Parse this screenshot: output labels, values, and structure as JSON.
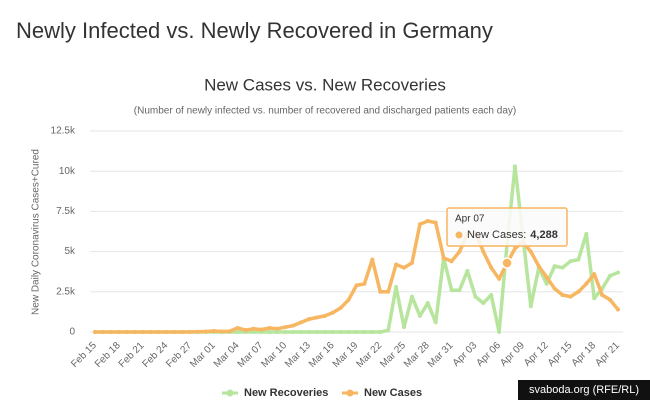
{
  "page_title": "Newly Infected vs. Newly Recovered in Germany",
  "watermark": "svaboda.org (RFE/RL)",
  "chart_data": {
    "type": "line",
    "title": "New Cases vs. New Recoveries",
    "subtitle": "(Number of newly infected vs. number of recovered and discharged patients each day)",
    "y_label": "New Daily Coronavirus Cases+Cured",
    "categories": [
      "Feb 15",
      null,
      null,
      "Feb 18",
      null,
      null,
      "Feb 21",
      null,
      null,
      "Feb 24",
      null,
      null,
      "Feb 27",
      null,
      null,
      "Mar 01",
      null,
      null,
      "Mar 04",
      null,
      null,
      "Mar 07",
      null,
      null,
      "Mar 10",
      null,
      null,
      "Mar 13",
      null,
      null,
      "Mar 16",
      null,
      null,
      "Mar 19",
      null,
      null,
      "Mar 22",
      null,
      null,
      "Mar 25",
      null,
      null,
      "Mar 28",
      null,
      null,
      "Mar 31",
      null,
      null,
      "Apr 03",
      null,
      null,
      "Apr 06",
      null,
      null,
      "Apr 09",
      null,
      null,
      "Apr 12",
      null,
      null,
      "Apr 15",
      null,
      null,
      "Apr 18",
      null,
      null,
      "Apr 21"
    ],
    "series": [
      {
        "name": "New Recoveries",
        "color": "#b8e59d",
        "values": [
          0,
          0,
          0,
          0,
          0,
          0,
          0,
          0,
          0,
          0,
          0,
          0,
          0,
          0,
          0,
          0,
          0,
          0,
          0,
          0,
          0,
          0,
          0,
          0,
          0,
          0,
          0,
          0,
          0,
          0,
          0,
          0,
          0,
          0,
          0,
          0,
          0,
          100,
          2800,
          300,
          2200,
          1000,
          1800,
          600,
          4600,
          2600,
          2600,
          3800,
          2200,
          1800,
          2300,
          0,
          5500,
          10300,
          6000,
          1600,
          4000,
          3000,
          4100,
          4000,
          4400,
          4500,
          6100,
          2100,
          2700,
          3500,
          3700
        ]
      },
      {
        "name": "New Cases",
        "color": "#f7b661",
        "values": [
          0,
          0,
          0,
          0,
          0,
          0,
          0,
          0,
          0,
          0,
          2,
          0,
          8,
          10,
          30,
          60,
          30,
          50,
          250,
          120,
          200,
          150,
          250,
          200,
          300,
          400,
          600,
          800,
          900,
          1000,
          1200,
          1500,
          2000,
          2900,
          3000,
          4500,
          2500,
          2500,
          4200,
          4000,
          4300,
          6700,
          6900,
          6800,
          4600,
          4400,
          5000,
          6100,
          6200,
          5000,
          4000,
          3300,
          4288,
          5200,
          5600,
          5000,
          4100,
          3400,
          2700,
          2300,
          2200,
          2500,
          3000,
          3600,
          2300,
          2000,
          1400
        ]
      }
    ],
    "ylim": [
      0,
      12500
    ],
    "yticks": [
      0,
      {
        "value": 2500,
        "label": "2.5k"
      },
      {
        "value": 5000,
        "label": "5k"
      },
      {
        "value": 7500,
        "label": "7.5k"
      },
      {
        "value": 10000,
        "label": "10k"
      },
      {
        "value": 12500,
        "label": "12.5k"
      }
    ],
    "grid": true,
    "legend": "bottom",
    "tooltip": {
      "category": "Apr 07",
      "series": "New Cases:",
      "value": 4288,
      "value_label": "4,288"
    }
  }
}
